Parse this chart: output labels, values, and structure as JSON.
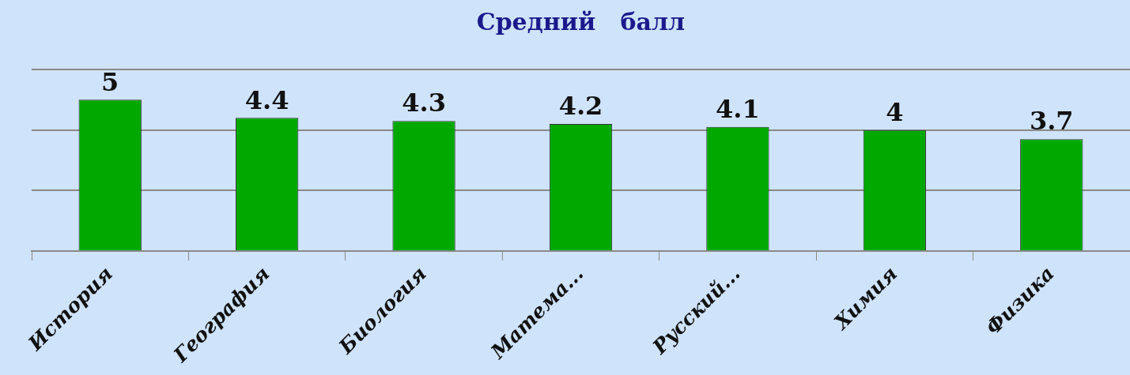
{
  "chart_data": {
    "type": "bar",
    "title": "Средний   балл",
    "categories": [
      "История",
      "География",
      "Биология",
      "Матема...",
      "Русский...",
      "Химия",
      "Физика"
    ],
    "values": [
      5,
      4.4,
      4.3,
      4.2,
      4.1,
      4,
      3.7
    ],
    "color": "#00a800",
    "ylim": [
      0,
      6
    ],
    "yticks": [
      {
        "value": 0,
        "label": null
      },
      {
        "value": 2,
        "label": null
      },
      {
        "value": 4,
        "label": null
      },
      {
        "value": 6,
        "label": null
      }
    ],
    "grid": "y",
    "tick_labels": "x",
    "data_labels": true,
    "legend": false
  }
}
